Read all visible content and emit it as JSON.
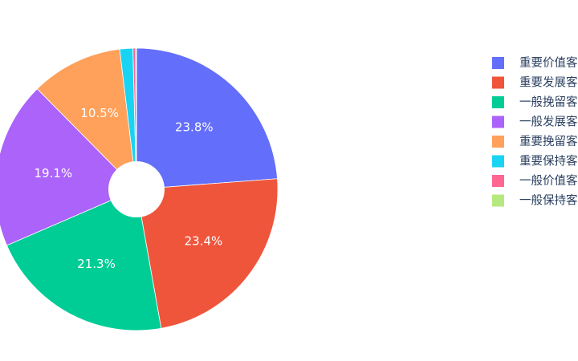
{
  "chart_data": {
    "type": "pie",
    "hole": true,
    "legend_position": "right",
    "slices": [
      {
        "name": "重要价值客户",
        "value": 23.8,
        "label": "23.8%",
        "color": "#636efa"
      },
      {
        "name": "重要发展客户",
        "value": 23.4,
        "label": "23.4%",
        "color": "#ef553b"
      },
      {
        "name": "一般挽留客户",
        "value": 21.3,
        "label": "21.3%",
        "color": "#00cc96"
      },
      {
        "name": "一般发展客户",
        "value": 19.1,
        "label": "19.1%",
        "color": "#ab63fa"
      },
      {
        "name": "重要挽留客户",
        "value": 10.5,
        "label": "10.5%",
        "color": "#ffa15a"
      },
      {
        "name": "重要保持客户",
        "value": 1.5,
        "label": "",
        "color": "#19d3f3"
      },
      {
        "name": "一般价值客户",
        "value": 0.3,
        "label": "",
        "color": "#ff6692"
      },
      {
        "name": "一般保持客户",
        "value": 0.1,
        "label": "",
        "color": "#b6e880"
      }
    ]
  }
}
